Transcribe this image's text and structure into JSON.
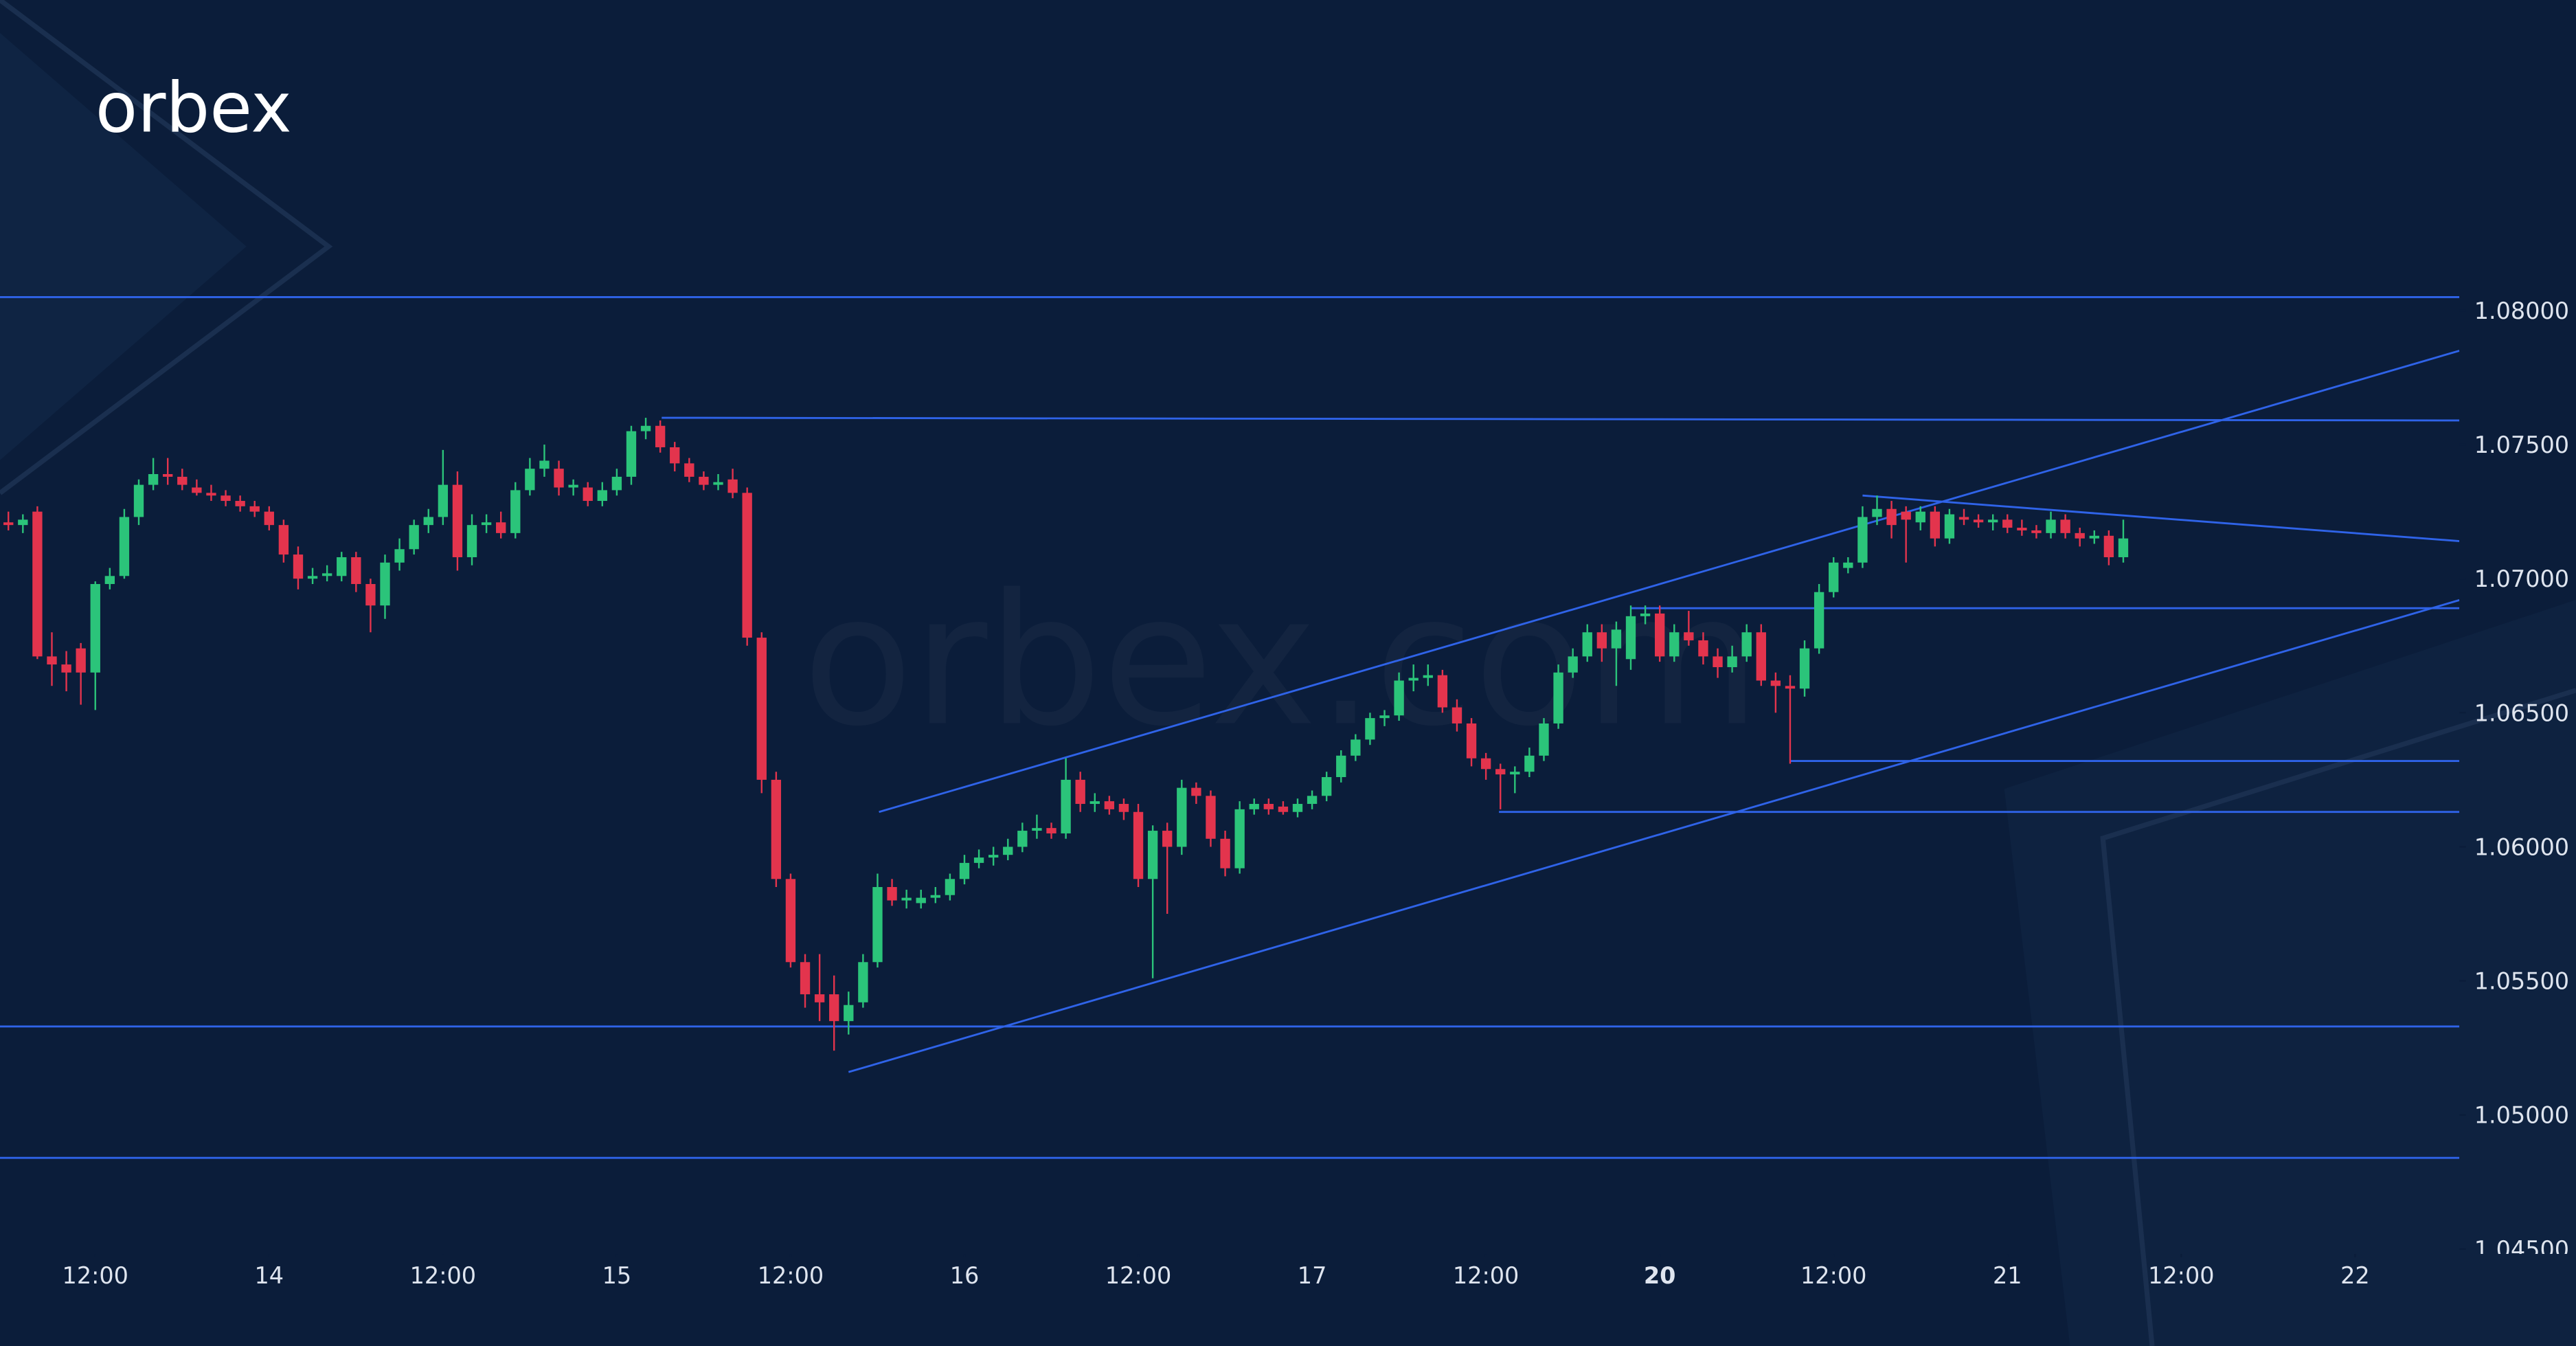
{
  "chart_data": {
    "type": "candlestick",
    "logo": "orbex",
    "watermark": "orbex.com",
    "x": [
      6,
      7,
      8,
      9,
      10,
      11,
      12,
      13,
      14,
      15,
      16,
      17,
      18,
      19,
      20,
      21,
      22,
      23,
      24,
      25,
      26,
      27,
      28,
      29,
      30,
      31,
      32,
      33,
      34,
      35,
      36,
      37,
      38,
      39,
      40,
      41,
      42,
      43,
      44,
      45,
      46,
      47,
      48,
      49,
      50,
      51,
      52,
      53,
      54,
      55,
      56,
      57,
      58,
      59,
      60,
      61,
      62,
      63,
      64,
      65,
      66,
      67,
      68,
      69,
      70,
      71,
      72,
      73,
      74,
      75,
      76,
      77,
      78,
      79,
      80,
      81,
      82,
      83,
      84,
      85,
      86,
      87,
      88,
      89,
      90,
      91,
      92,
      93,
      94,
      95,
      96,
      97,
      98,
      99,
      100,
      101,
      102,
      103,
      104,
      105,
      106,
      107,
      108,
      109,
      110,
      111,
      112,
      113,
      114,
      115,
      116,
      117,
      118,
      119,
      120,
      121,
      122,
      123,
      124,
      125,
      126,
      127,
      128,
      129,
      130,
      131,
      132,
      133,
      134,
      135,
      136,
      137,
      138,
      139,
      140,
      141,
      142,
      143,
      144,
      145,
      146,
      147,
      148,
      149,
      150,
      151,
      152
    ],
    "ohlc": [
      [
        1.0721,
        1.0725,
        1.0718,
        1.072
      ],
      [
        1.072,
        1.0724,
        1.0717,
        1.0722
      ],
      [
        1.0725,
        1.0727,
        1.067,
        1.0671
      ],
      [
        1.0671,
        1.068,
        1.066,
        1.0668
      ],
      [
        1.0668,
        1.0673,
        1.0658,
        1.0665
      ],
      [
        1.0674,
        1.0676,
        1.0653,
        1.0665
      ],
      [
        1.0665,
        1.0699,
        1.0651,
        1.0698
      ],
      [
        1.0698,
        1.0704,
        1.0696,
        1.0701
      ],
      [
        1.0701,
        1.0726,
        1.07,
        1.0723
      ],
      [
        1.0723,
        1.0737,
        1.072,
        1.0735
      ],
      [
        1.0735,
        1.0745,
        1.0733,
        1.0739
      ],
      [
        1.0739,
        1.0745,
        1.0735,
        1.0738
      ],
      [
        1.0738,
        1.0741,
        1.0733,
        1.0735
      ],
      [
        1.0734,
        1.0737,
        1.0731,
        1.0732
      ],
      [
        1.0732,
        1.0735,
        1.0729,
        1.0731
      ],
      [
        1.0731,
        1.0733,
        1.0727,
        1.0729
      ],
      [
        1.0729,
        1.0731,
        1.0725,
        1.0727
      ],
      [
        1.0727,
        1.0729,
        1.0723,
        1.0725
      ],
      [
        1.0725,
        1.0727,
        1.0718,
        1.072
      ],
      [
        1.072,
        1.0722,
        1.0706,
        1.0709
      ],
      [
        1.0709,
        1.0712,
        1.0696,
        1.07
      ],
      [
        1.07,
        1.0704,
        1.0698,
        1.0701
      ],
      [
        1.0701,
        1.0705,
        1.0699,
        1.0702
      ],
      [
        1.0701,
        1.071,
        1.0699,
        1.0708
      ],
      [
        1.0708,
        1.071,
        1.0695,
        1.0698
      ],
      [
        1.0698,
        1.07,
        1.068,
        1.069
      ],
      [
        1.069,
        1.0709,
        1.0685,
        1.0706
      ],
      [
        1.0706,
        1.0715,
        1.0703,
        1.0711
      ],
      [
        1.0711,
        1.0722,
        1.0709,
        1.072
      ],
      [
        1.072,
        1.0726,
        1.0717,
        1.0723
      ],
      [
        1.0723,
        1.0748,
        1.072,
        1.0735
      ],
      [
        1.0735,
        1.074,
        1.0703,
        1.0708
      ],
      [
        1.0708,
        1.0724,
        1.0705,
        1.072
      ],
      [
        1.072,
        1.0724,
        1.0717,
        1.0721
      ],
      [
        1.0721,
        1.0725,
        1.0715,
        1.0717
      ],
      [
        1.0717,
        1.0736,
        1.0715,
        1.0733
      ],
      [
        1.0733,
        1.0745,
        1.0731,
        1.0741
      ],
      [
        1.0741,
        1.075,
        1.0738,
        1.0744
      ],
      [
        1.0741,
        1.0744,
        1.0731,
        1.0734
      ],
      [
        1.0734,
        1.0737,
        1.0731,
        1.0735
      ],
      [
        1.0734,
        1.0736,
        1.0727,
        1.0729
      ],
      [
        1.0729,
        1.0736,
        1.0727,
        1.0733
      ],
      [
        1.0733,
        1.0741,
        1.0731,
        1.0738
      ],
      [
        1.0738,
        1.0757,
        1.0735,
        1.0755
      ],
      [
        1.0755,
        1.076,
        1.0752,
        1.0757
      ],
      [
        1.0757,
        1.0759,
        1.0747,
        1.0749
      ],
      [
        1.0749,
        1.0751,
        1.074,
        1.0743
      ],
      [
        1.0743,
        1.0745,
        1.0736,
        1.0738
      ],
      [
        1.0738,
        1.074,
        1.0733,
        1.0735
      ],
      [
        1.0735,
        1.0739,
        1.0733,
        1.0736
      ],
      [
        1.0737,
        1.0741,
        1.073,
        1.0732
      ],
      [
        1.0732,
        1.0734,
        1.0675,
        1.0678
      ],
      [
        1.0678,
        1.068,
        1.062,
        1.0625
      ],
      [
        1.0625,
        1.0628,
        1.0585,
        1.0588
      ],
      [
        1.0588,
        1.059,
        1.0555,
        1.0557
      ],
      [
        1.0557,
        1.056,
        1.054,
        1.0545
      ],
      [
        1.0545,
        1.056,
        1.0535,
        1.0542
      ],
      [
        1.0545,
        1.0552,
        1.0524,
        1.0535
      ],
      [
        1.0535,
        1.0546,
        1.053,
        1.0541
      ],
      [
        1.0542,
        1.056,
        1.054,
        1.0557
      ],
      [
        1.0557,
        1.059,
        1.0555,
        1.0585
      ],
      [
        1.0585,
        1.0588,
        1.0578,
        1.058
      ],
      [
        1.058,
        1.0584,
        1.0577,
        1.0581
      ],
      [
        1.0579,
        1.0584,
        1.0577,
        1.0581
      ],
      [
        1.0581,
        1.0585,
        1.0579,
        1.0582
      ],
      [
        1.0582,
        1.059,
        1.058,
        1.0588
      ],
      [
        1.0588,
        1.0597,
        1.0586,
        1.0594
      ],
      [
        1.0594,
        1.0599,
        1.0592,
        1.0596
      ],
      [
        1.0596,
        1.06,
        1.0593,
        1.0597
      ],
      [
        1.0597,
        1.0603,
        1.0595,
        1.06
      ],
      [
        1.06,
        1.0609,
        1.0598,
        1.0606
      ],
      [
        1.0606,
        1.0612,
        1.0603,
        1.0607
      ],
      [
        1.0607,
        1.0609,
        1.0603,
        1.0605
      ],
      [
        1.0605,
        1.0633,
        1.0603,
        1.0625
      ],
      [
        1.0625,
        1.0628,
        1.0613,
        1.0616
      ],
      [
        1.0616,
        1.062,
        1.0613,
        1.0617
      ],
      [
        1.0617,
        1.0619,
        1.0612,
        1.0614
      ],
      [
        1.0616,
        1.0618,
        1.061,
        1.0613
      ],
      [
        1.0613,
        1.0616,
        1.0585,
        1.0588
      ],
      [
        1.0588,
        1.0608,
        1.0551,
        1.0606
      ],
      [
        1.0606,
        1.0609,
        1.0575,
        1.06
      ],
      [
        1.06,
        1.0625,
        1.0597,
        1.0622
      ],
      [
        1.0622,
        1.0624,
        1.0616,
        1.0619
      ],
      [
        1.0619,
        1.0621,
        1.06,
        1.0603
      ],
      [
        1.0603,
        1.0606,
        1.0589,
        1.0592
      ],
      [
        1.0592,
        1.0617,
        1.059,
        1.0614
      ],
      [
        1.0614,
        1.0618,
        1.0612,
        1.0616
      ],
      [
        1.0616,
        1.0618,
        1.0612,
        1.0614
      ],
      [
        1.0615,
        1.0617,
        1.0612,
        1.0613
      ],
      [
        1.0613,
        1.0618,
        1.0611,
        1.0616
      ],
      [
        1.0616,
        1.0621,
        1.0614,
        1.0619
      ],
      [
        1.0619,
        1.0628,
        1.0617,
        1.0626
      ],
      [
        1.0626,
        1.0636,
        1.0624,
        1.0634
      ],
      [
        1.0634,
        1.0642,
        1.0632,
        1.064
      ],
      [
        1.064,
        1.065,
        1.0638,
        1.0648
      ],
      [
        1.0648,
        1.0651,
        1.0645,
        1.0649
      ],
      [
        1.0649,
        1.0665,
        1.0647,
        1.0662
      ],
      [
        1.0662,
        1.0668,
        1.0658,
        1.0663
      ],
      [
        1.0663,
        1.0668,
        1.066,
        1.0664
      ],
      [
        1.0664,
        1.0666,
        1.065,
        1.0652
      ],
      [
        1.0652,
        1.0655,
        1.0643,
        1.0646
      ],
      [
        1.0646,
        1.0648,
        1.063,
        1.0633
      ],
      [
        1.0633,
        1.0635,
        1.0625,
        1.0629
      ],
      [
        1.0629,
        1.0631,
        1.0614,
        1.0627
      ],
      [
        1.0627,
        1.063,
        1.062,
        1.0628
      ],
      [
        1.0628,
        1.0637,
        1.0626,
        1.0634
      ],
      [
        1.0634,
        1.0648,
        1.0632,
        1.0646
      ],
      [
        1.0646,
        1.0668,
        1.0644,
        1.0665
      ],
      [
        1.0665,
        1.0674,
        1.0663,
        1.0671
      ],
      [
        1.0671,
        1.0683,
        1.0669,
        1.068
      ],
      [
        1.068,
        1.0683,
        1.0669,
        1.0674
      ],
      [
        1.0674,
        1.0684,
        1.066,
        1.0681
      ],
      [
        1.067,
        1.069,
        1.0666,
        1.0686
      ],
      [
        1.0686,
        1.069,
        1.0683,
        1.0687
      ],
      [
        1.0687,
        1.069,
        1.0669,
        1.0671
      ],
      [
        1.0671,
        1.0683,
        1.0669,
        1.068
      ],
      [
        1.068,
        1.0688,
        1.0675,
        1.0677
      ],
      [
        1.0677,
        1.068,
        1.0668,
        1.0671
      ],
      [
        1.0671,
        1.0674,
        1.0663,
        1.0667
      ],
      [
        1.0667,
        1.0675,
        1.0665,
        1.0671
      ],
      [
        1.0671,
        1.0683,
        1.0669,
        1.068
      ],
      [
        1.068,
        1.0683,
        1.066,
        1.0662
      ],
      [
        1.0662,
        1.0665,
        1.065,
        1.066
      ],
      [
        1.066,
        1.0664,
        1.0631,
        1.0659
      ],
      [
        1.0659,
        1.0677,
        1.0656,
        1.0674
      ],
      [
        1.0674,
        1.0698,
        1.0672,
        1.0695
      ],
      [
        1.0695,
        1.0708,
        1.0693,
        1.0706
      ],
      [
        1.0704,
        1.0708,
        1.0702,
        1.0706
      ],
      [
        1.0706,
        1.0727,
        1.0704,
        1.0723
      ],
      [
        1.0723,
        1.0731,
        1.072,
        1.0726
      ],
      [
        1.0726,
        1.0729,
        1.0715,
        1.072
      ],
      [
        1.0725,
        1.0727,
        1.0706,
        1.0722
      ],
      [
        1.0721,
        1.0727,
        1.0718,
        1.0725
      ],
      [
        1.0725,
        1.0727,
        1.0712,
        1.0715
      ],
      [
        1.0715,
        1.0726,
        1.0713,
        1.0724
      ],
      [
        1.0723,
        1.0726,
        1.072,
        1.0722
      ],
      [
        1.0722,
        1.0724,
        1.0719,
        1.0721
      ],
      [
        1.0721,
        1.0724,
        1.0718,
        1.0722
      ],
      [
        1.0722,
        1.0724,
        1.0717,
        1.0719
      ],
      [
        1.0719,
        1.0722,
        1.0716,
        1.0718
      ],
      [
        1.0718,
        1.072,
        1.0715,
        1.0717
      ],
      [
        1.0717,
        1.0725,
        1.0715,
        1.0722
      ],
      [
        1.0722,
        1.0724,
        1.0715,
        1.0717
      ],
      [
        1.0717,
        1.0719,
        1.0712,
        1.0715
      ],
      [
        1.0715,
        1.0718,
        1.0713,
        1.0716
      ],
      [
        1.0716,
        1.0718,
        1.0705,
        1.0708
      ],
      [
        1.0708,
        1.0722,
        1.0706,
        1.0715
      ]
    ],
    "up_color": "#2bc47a",
    "down_color": "#e3344d",
    "line_color": "#2f63e8",
    "lines": [
      {
        "x": [
          5.42,
          175.2
        ],
        "y": [
          1.0805,
          1.0805
        ]
      },
      {
        "x": [
          5.42,
          175.2
        ],
        "y": [
          1.0533,
          1.0533
        ]
      },
      {
        "x": [
          5.42,
          175.2
        ],
        "y": [
          1.0484,
          1.0484
        ]
      },
      {
        "x": [
          51.1,
          175.2
        ],
        "y": [
          1.076,
          1.0759
        ]
      },
      {
        "x": [
          66.1,
          175.2
        ],
        "y": [
          1.0613,
          1.0785
        ]
      },
      {
        "x": [
          64.0,
          175.2
        ],
        "y": [
          1.0516,
          1.0692
        ]
      },
      {
        "x": [
          134.0,
          175.2
        ],
        "y": [
          1.0731,
          1.0714
        ]
      },
      {
        "x": [
          118.0,
          175.2
        ],
        "y": [
          1.0689,
          1.0689
        ]
      },
      {
        "x": [
          129.0,
          175.2
        ],
        "y": [
          1.0632,
          1.0632
        ]
      },
      {
        "x": [
          108.9,
          175.2
        ],
        "y": [
          1.0613,
          1.0613
        ]
      }
    ],
    "xlim": [
      5.42,
      175.2
    ],
    "ylim": [
      1.045,
      1.09158
    ],
    "yticks": [
      {
        "value": 1.045,
        "label": "1.04500"
      },
      {
        "value": 1.05,
        "label": "1.05000"
      },
      {
        "value": 1.055,
        "label": "1.05500"
      },
      {
        "value": 1.06,
        "label": "1.06000"
      },
      {
        "value": 1.065,
        "label": "1.06500"
      },
      {
        "value": 1.07,
        "label": "1.07000"
      },
      {
        "value": 1.075,
        "label": "1.07500"
      },
      {
        "value": 1.08,
        "label": "1.08000"
      }
    ],
    "xticks": [
      {
        "value": 12,
        "label": "12:00"
      },
      {
        "value": 24,
        "label": "14"
      },
      {
        "value": 36,
        "label": "12:00"
      },
      {
        "value": 48,
        "label": "15"
      },
      {
        "value": 60,
        "label": "12:00"
      },
      {
        "value": 72,
        "label": "16"
      },
      {
        "value": 84,
        "label": "12:00"
      },
      {
        "value": 96,
        "label": "17"
      },
      {
        "value": 108,
        "label": "12:00"
      },
      {
        "value": 120,
        "label": "20",
        "bold": true
      },
      {
        "value": 132,
        "label": "12:00"
      },
      {
        "value": 144,
        "label": "21"
      },
      {
        "value": 156,
        "label": "12:00"
      },
      {
        "value": 168,
        "label": "22"
      }
    ]
  }
}
